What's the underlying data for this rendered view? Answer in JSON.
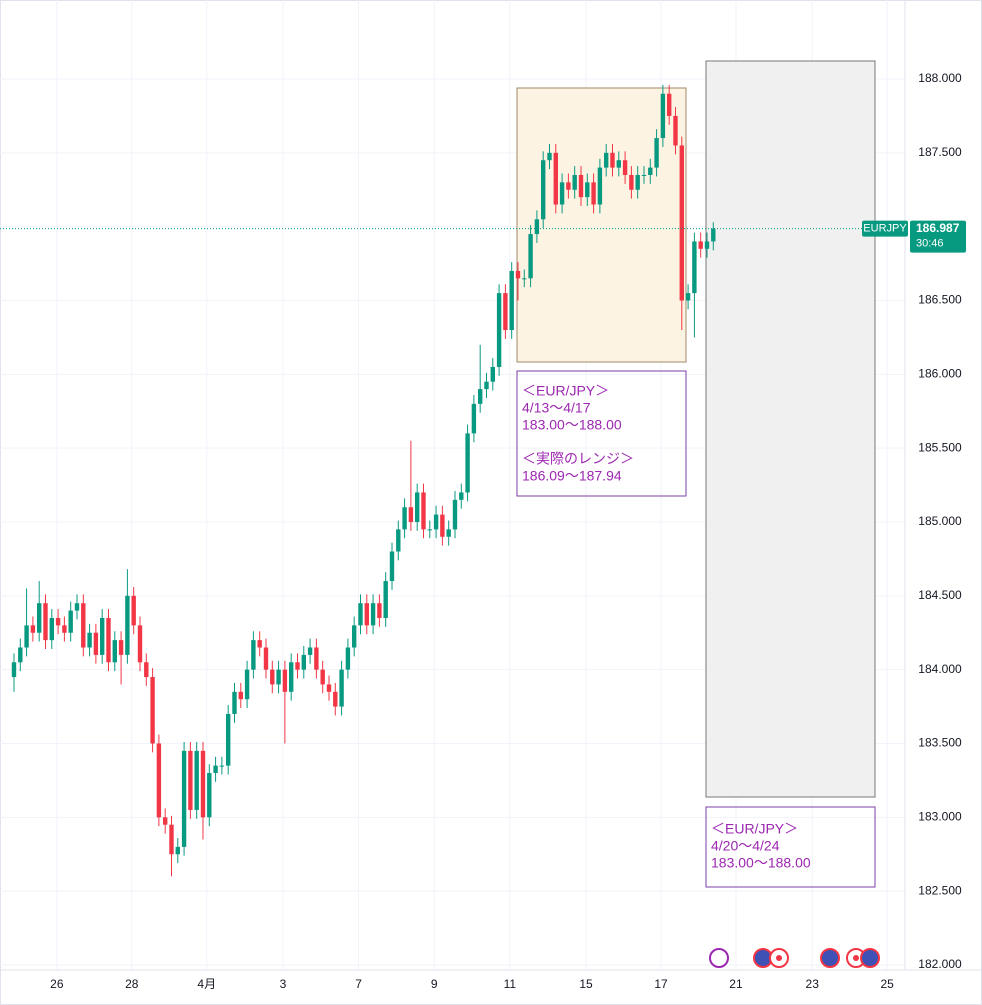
{
  "chart_data": {
    "type": "candlestick",
    "symbol": "EURJPY",
    "last_price": 186.987,
    "countdown": "30:46",
    "up_color": "#089981",
    "down_color": "#f23645",
    "grid": true,
    "xlim": [
      -2.22,
      141.43
    ],
    "ylim": [
      181.966,
      188.535
    ],
    "yticks": [
      {
        "value": 182,
        "label": "182.000"
      },
      {
        "value": 182.5,
        "label": "182.500"
      },
      {
        "value": 183,
        "label": "183.000"
      },
      {
        "value": 183.5,
        "label": "183.500"
      },
      {
        "value": 184,
        "label": "184.000"
      },
      {
        "value": 184.5,
        "label": "184.500"
      },
      {
        "value": 185,
        "label": "185.000"
      },
      {
        "value": 185.5,
        "label": "185.500"
      },
      {
        "value": 186,
        "label": "186.000"
      },
      {
        "value": 186.5,
        "label": "186.500"
      },
      {
        "value": 187,
        "label": "187.000"
      },
      {
        "value": 187.5,
        "label": "187.500"
      },
      {
        "value": 188,
        "label": "188.000"
      }
    ],
    "xticks": [
      {
        "value": 6.8,
        "label": "26"
      },
      {
        "value": 18.7,
        "label": "28"
      },
      {
        "value": 30.6,
        "label": "4月"
      },
      {
        "value": 42.7,
        "label": "3"
      },
      {
        "value": 54.7,
        "label": "7"
      },
      {
        "value": 66.7,
        "label": "9"
      },
      {
        "value": 78.7,
        "label": "11"
      },
      {
        "value": 90.8,
        "label": "15"
      },
      {
        "value": 102.7,
        "label": "17"
      },
      {
        "value": 114.6,
        "label": "21"
      },
      {
        "value": 126.7,
        "label": "23"
      },
      {
        "value": 138.6,
        "label": "25"
      }
    ],
    "open": [
      183.95,
      184.05,
      184.15,
      184.3,
      184.25,
      184.45,
      184.2,
      184.35,
      184.3,
      184.25,
      184.4,
      184.45,
      184.15,
      184.25,
      184.1,
      184.35,
      184.05,
      184.2,
      184.1,
      184.5,
      184.3,
      184.05,
      183.95,
      183.5,
      183.0,
      182.95,
      182.75,
      182.8,
      183.45,
      183.05,
      183.45,
      183.0,
      183.3,
      183.35,
      183.35,
      183.7,
      183.85,
      183.8,
      184.0,
      184.2,
      184.15,
      184.0,
      183.9,
      184.0,
      183.85,
      184.05,
      184.0,
      184.1,
      184.15,
      184.0,
      183.9,
      183.85,
      183.75,
      184.0,
      184.15,
      184.3,
      184.45,
      184.3,
      184.45,
      184.35,
      184.6,
      184.8,
      184.95,
      185.1,
      185.0,
      185.2,
      184.95,
      184.95,
      185.05,
      184.9,
      184.95,
      185.15,
      185.2,
      185.6,
      185.8,
      185.9,
      185.95,
      186.05,
      186.55,
      186.3,
      186.7,
      186.65,
      186.65,
      186.95,
      187.05,
      187.45,
      187.5,
      187.15,
      187.3,
      187.25,
      187.35,
      187.2,
      187.3,
      187.15,
      187.4,
      187.5,
      187.4,
      187.45,
      187.35,
      187.25,
      187.35,
      187.35,
      187.4,
      187.6,
      187.9,
      187.75,
      187.55,
      186.5,
      186.55,
      186.9,
      186.85,
      186.9
    ],
    "high": [
      184.11,
      184.21,
      184.55,
      184.36,
      184.6,
      184.51,
      184.41,
      184.41,
      184.36,
      184.46,
      184.51,
      184.51,
      184.31,
      184.31,
      184.41,
      184.41,
      184.26,
      184.26,
      184.68,
      184.56,
      184.36,
      184.11,
      184.01,
      183.56,
      183.06,
      183.01,
      182.86,
      183.51,
      183.51,
      183.51,
      183.51,
      183.36,
      183.41,
      183.41,
      183.76,
      183.91,
      183.91,
      184.06,
      184.26,
      184.26,
      184.21,
      184.06,
      184.06,
      184.06,
      184.11,
      184.11,
      184.16,
      184.21,
      184.21,
      184.06,
      183.96,
      183.91,
      184.06,
      184.21,
      184.36,
      184.51,
      184.51,
      184.51,
      184.51,
      184.66,
      184.86,
      185.01,
      185.16,
      185.55,
      185.26,
      185.26,
      185.01,
      185.11,
      185.11,
      185.01,
      185.21,
      185.26,
      185.66,
      185.86,
      186.2,
      186.01,
      186.11,
      186.61,
      186.61,
      186.76,
      186.76,
      186.71,
      187.01,
      187.11,
      187.51,
      187.56,
      187.56,
      187.36,
      187.36,
      187.41,
      187.41,
      187.36,
      187.36,
      187.46,
      187.56,
      187.56,
      187.51,
      187.51,
      187.41,
      187.41,
      187.41,
      187.46,
      187.66,
      187.96,
      187.96,
      187.81,
      187.61,
      186.61,
      186.96,
      186.96,
      186.96,
      187.03
    ],
    "low": [
      183.85,
      183.99,
      184.09,
      184.19,
      184.19,
      184.14,
      184.14,
      184.24,
      184.19,
      184.19,
      184.34,
      184.09,
      184.09,
      184.04,
      184.04,
      183.99,
      183.99,
      183.9,
      184.04,
      184.24,
      183.99,
      183.89,
      183.44,
      182.94,
      182.89,
      182.6,
      182.69,
      182.74,
      182.99,
      182.99,
      182.85,
      182.94,
      183.24,
      183.29,
      183.29,
      183.64,
      183.74,
      183.74,
      183.94,
      184.09,
      183.94,
      183.84,
      183.84,
      183.5,
      183.79,
      183.94,
      183.94,
      184.04,
      183.94,
      183.84,
      183.79,
      183.69,
      183.69,
      183.94,
      184.09,
      184.24,
      184.24,
      184.24,
      184.29,
      184.29,
      184.54,
      184.74,
      184.89,
      184.94,
      184.94,
      184.89,
      184.89,
      184.89,
      184.84,
      184.84,
      184.89,
      185.09,
      185.14,
      185.54,
      185.74,
      185.84,
      185.89,
      185.99,
      186.24,
      186.24,
      186.5,
      186.59,
      186.59,
      186.89,
      186.99,
      187.39,
      187.09,
      187.09,
      187.19,
      187.19,
      187.14,
      187.14,
      187.09,
      187.09,
      187.34,
      187.34,
      187.34,
      187.29,
      187.19,
      187.19,
      187.29,
      187.29,
      187.34,
      187.54,
      187.69,
      187.49,
      186.3,
      186.44,
      186.25,
      186.79,
      186.79,
      186.84
    ],
    "close": [
      184.05,
      184.15,
      184.3,
      184.25,
      184.45,
      184.2,
      184.35,
      184.3,
      184.25,
      184.4,
      184.45,
      184.15,
      184.25,
      184.1,
      184.35,
      184.05,
      184.2,
      184.1,
      184.5,
      184.3,
      184.05,
      183.95,
      183.5,
      183.0,
      182.95,
      182.75,
      182.8,
      183.45,
      183.05,
      183.45,
      183.0,
      183.3,
      183.35,
      183.35,
      183.7,
      183.85,
      183.8,
      184.0,
      184.2,
      184.15,
      184.0,
      183.9,
      184.0,
      183.85,
      184.05,
      184.0,
      184.1,
      184.15,
      184.0,
      183.9,
      183.85,
      183.75,
      184.0,
      184.15,
      184.3,
      184.45,
      184.3,
      184.45,
      184.35,
      184.6,
      184.8,
      184.95,
      185.1,
      185.0,
      185.2,
      184.95,
      184.95,
      185.05,
      184.9,
      184.95,
      185.15,
      185.2,
      185.6,
      185.8,
      185.9,
      185.95,
      186.05,
      186.55,
      186.3,
      186.7,
      186.65,
      186.65,
      186.95,
      187.05,
      187.45,
      187.5,
      187.15,
      187.3,
      187.25,
      187.35,
      187.2,
      187.3,
      187.15,
      187.4,
      187.5,
      187.4,
      187.45,
      187.35,
      187.25,
      187.35,
      187.35,
      187.4,
      187.6,
      187.9,
      187.75,
      187.55,
      186.5,
      186.55,
      186.9,
      186.85,
      186.9,
      186.987
    ],
    "annotations": [
      {
        "lines": [
          "＜EUR/JPY＞",
          "4/13～4/17",
          "183.00～188.00",
          "",
          "＜実際のレンジ＞",
          "186.09～187.94"
        ]
      },
      {
        "lines": [
          "＜EUR/JPY＞",
          "4/20～4/24",
          "183.00～188.00"
        ]
      }
    ]
  }
}
